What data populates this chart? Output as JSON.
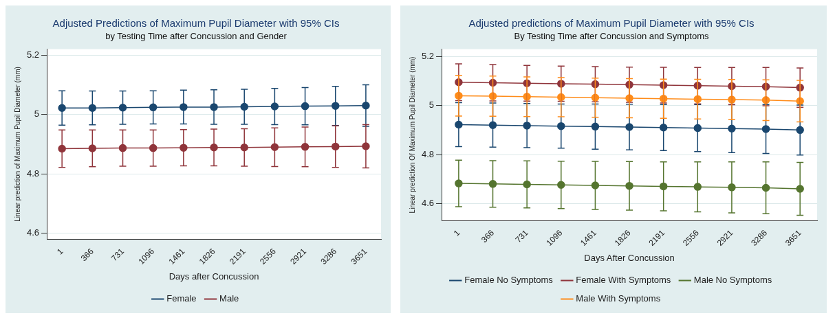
{
  "chart_data": [
    {
      "type": "line",
      "title": "Adjusted Predictions of Maximum Pupil Diameter with 95% CIs",
      "subtitle": "by Testing Time after Concussion and Gender",
      "xlabel": "Days after Concussion",
      "ylabel": "Linear prediction of Maximum Pupil Diameter (mm)",
      "categories": [
        "1",
        "366",
        "731",
        "1096",
        "1461",
        "1826",
        "2191",
        "2556",
        "2921",
        "3286",
        "3651"
      ],
      "ylim": [
        4.58,
        5.22
      ],
      "yticks": [
        4.6,
        4.8,
        5,
        5.2
      ],
      "grid": "y",
      "legend": "bottom",
      "marker": "circle",
      "series": [
        {
          "name": "Female",
          "color": "#1a476f",
          "values": [
            5.022,
            5.022,
            5.023,
            5.024,
            5.025,
            5.025,
            5.026,
            5.027,
            5.028,
            5.029,
            5.03
          ],
          "errors": [
            0.058,
            0.057,
            0.056,
            0.056,
            0.057,
            0.058,
            0.059,
            0.061,
            0.063,
            0.066,
            0.07
          ]
        },
        {
          "name": "Male",
          "color": "#90353b",
          "values": [
            4.885,
            4.886,
            4.887,
            4.887,
            4.888,
            4.889,
            4.889,
            4.89,
            4.891,
            4.892,
            4.893
          ],
          "errors": [
            0.063,
            0.062,
            0.061,
            0.061,
            0.061,
            0.062,
            0.063,
            0.065,
            0.067,
            0.07,
            0.073
          ]
        }
      ]
    },
    {
      "type": "line",
      "title": "Adjusted predictions of Maximum Pupil Diameter with 95% CIs",
      "subtitle": "By Testing Time after Concussion and Symptoms",
      "xlabel": "Days After Concussion",
      "ylabel": "Linear prediction Of Maximum Pupil Diameter (mm)",
      "categories": [
        "1",
        "366",
        "731",
        "1096",
        "1461",
        "1826",
        "2191",
        "2556",
        "2921",
        "3286",
        "3651"
      ],
      "ylim": [
        4.53,
        5.23
      ],
      "yticks": [
        4.6,
        4.8,
        5,
        5.2
      ],
      "grid": "y",
      "legend": "bottom",
      "marker": "circle",
      "series": [
        {
          "name": "Female No Symptoms",
          "color": "#1a476f",
          "values": [
            4.922,
            4.92,
            4.918,
            4.916,
            4.914,
            4.912,
            4.91,
            4.908,
            4.906,
            4.904,
            4.9
          ],
          "errors": [
            0.09,
            0.09,
            0.09,
            0.09,
            0.092,
            0.093,
            0.094,
            0.096,
            0.098,
            0.1,
            0.102
          ]
        },
        {
          "name": "Female With Symptoms",
          "color": "#90353b",
          "values": [
            5.095,
            5.093,
            5.091,
            5.089,
            5.087,
            5.085,
            5.083,
            5.081,
            5.079,
            5.077,
            5.073
          ],
          "errors": [
            0.075,
            0.074,
            0.073,
            0.072,
            0.072,
            0.072,
            0.073,
            0.074,
            0.076,
            0.078,
            0.08
          ]
        },
        {
          "name": "Male No Symptoms",
          "color": "#55752f",
          "values": [
            4.682,
            4.68,
            4.678,
            4.676,
            4.674,
            4.672,
            4.67,
            4.668,
            4.666,
            4.664,
            4.66
          ],
          "errors": [
            0.095,
            0.095,
            0.096,
            0.097,
            0.098,
            0.099,
            0.1,
            0.102,
            0.104,
            0.106,
            0.108
          ]
        },
        {
          "name": "Male With Symptoms",
          "color": "#ff8c1a",
          "values": [
            5.04,
            5.038,
            5.036,
            5.034,
            5.032,
            5.03,
            5.028,
            5.026,
            5.024,
            5.022,
            5.018
          ],
          "errors": [
            0.083,
            0.082,
            0.081,
            0.08,
            0.08,
            0.08,
            0.08,
            0.081,
            0.082,
            0.083,
            0.085
          ]
        }
      ]
    }
  ]
}
